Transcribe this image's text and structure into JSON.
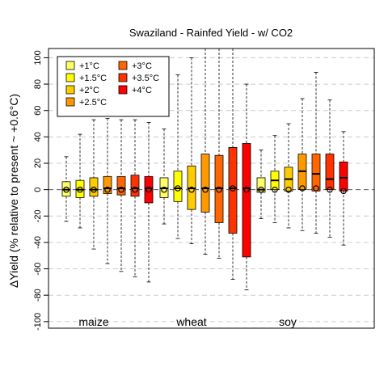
{
  "chart_data": {
    "type": "boxplot",
    "title": "Swaziland - Rainfed Yield - w/ CO2",
    "ylabel": "ΔYield (% relative to present ~ +0.6°C)",
    "ylim": [
      -105,
      107
    ],
    "yticks": [
      -100,
      -80,
      -60,
      -40,
      -20,
      0,
      20,
      40,
      60,
      80,
      100
    ],
    "grid": true,
    "legend_position": "top-left",
    "legend": [
      {
        "label": "+1°C",
        "color": "#ffff66"
      },
      {
        "label": "+1.5°C",
        "color": "#ffff00"
      },
      {
        "label": "+2°C",
        "color": "#ffcc00"
      },
      {
        "label": "+2.5°C",
        "color": "#ff9900"
      },
      {
        "label": "+3°C",
        "color": "#ff6600"
      },
      {
        "label": "+3.5°C",
        "color": "#ff3300"
      },
      {
        "label": "+4°C",
        "color": "#ff0000"
      }
    ],
    "groups": [
      {
        "label": "maize",
        "boxes": [
          {
            "level": "+1°C",
            "min": -24,
            "q1": -5,
            "median": 0,
            "q3": 6,
            "max": 25,
            "mean": 0
          },
          {
            "level": "+1.5°C",
            "min": -29,
            "q1": -6,
            "median": 0,
            "q3": 7,
            "max": 42,
            "mean": 0
          },
          {
            "level": "+2°C",
            "min": -45,
            "q1": -5,
            "median": 0,
            "q3": 9,
            "max": 53,
            "mean": 0
          },
          {
            "level": "+2.5°C",
            "min": -56,
            "q1": -3,
            "median": 1,
            "q3": 10,
            "max": 54,
            "mean": 0
          },
          {
            "level": "+3°C",
            "min": -62,
            "q1": -4,
            "median": 1,
            "q3": 10,
            "max": 53,
            "mean": 0
          },
          {
            "level": "+3.5°C",
            "min": -66,
            "q1": -5,
            "median": 1,
            "q3": 11,
            "max": 53,
            "mean": 0
          },
          {
            "level": "+4°C",
            "min": -70,
            "q1": -10,
            "median": 1,
            "q3": 10,
            "max": 51,
            "mean": 0
          }
        ]
      },
      {
        "label": "wheat",
        "boxes": [
          {
            "level": "+1°C",
            "min": -26,
            "q1": -6,
            "median": 1,
            "q3": 9,
            "max": 46,
            "mean": 0
          },
          {
            "level": "+1.5°C",
            "min": -37,
            "q1": -9,
            "median": 1,
            "q3": 14,
            "max": 87,
            "mean": 1
          },
          {
            "level": "+2°C",
            "min": -41,
            "q1": -15,
            "median": 1,
            "q3": 18,
            "max": 100,
            "mean": 0
          },
          {
            "level": "+2.5°C",
            "min": -49,
            "q1": -17,
            "median": 1,
            "q3": 27,
            "max": 107,
            "mean": 0
          },
          {
            "level": "+3°C",
            "min": -52,
            "q1": -25,
            "median": 1,
            "q3": 26,
            "max": 107,
            "mean": 0
          },
          {
            "level": "+3.5°C",
            "min": -68,
            "q1": -33,
            "median": 1,
            "q3": 32,
            "max": 107,
            "mean": 1
          },
          {
            "level": "+4°C",
            "min": -76,
            "q1": -51,
            "median": 1,
            "q3": 35,
            "max": 80,
            "mean": 0
          }
        ]
      },
      {
        "label": "soy",
        "boxes": [
          {
            "level": "+1°C",
            "min": -22,
            "q1": -2,
            "median": 0,
            "q3": 9,
            "max": 30,
            "mean": 0
          },
          {
            "level": "+1.5°C",
            "min": -25,
            "q1": 0,
            "median": 7,
            "q3": 14,
            "max": 41,
            "mean": 0
          },
          {
            "level": "+2°C",
            "min": -29,
            "q1": -1,
            "median": 8,
            "q3": 17,
            "max": 50,
            "mean": 0
          },
          {
            "level": "+2.5°C",
            "min": -31,
            "q1": 0,
            "median": 14,
            "q3": 27,
            "max": 69,
            "mean": 1
          },
          {
            "level": "+3°C",
            "min": -33,
            "q1": -1,
            "median": 12,
            "q3": 27,
            "max": 89,
            "mean": 1
          },
          {
            "level": "+3.5°C",
            "min": -36,
            "q1": 0,
            "median": 8,
            "q3": 27,
            "max": 68,
            "mean": 0
          },
          {
            "level": "+4°C",
            "min": -42,
            "q1": -1,
            "median": 9,
            "q3": 21,
            "max": 44,
            "mean": -1
          }
        ]
      }
    ]
  }
}
